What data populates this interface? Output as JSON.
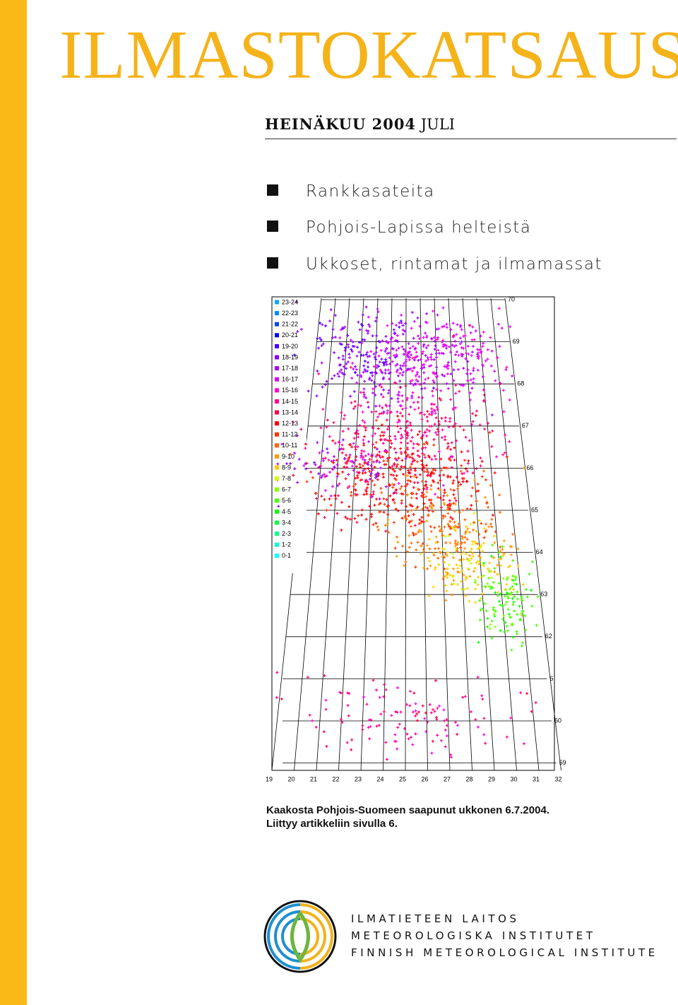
{
  "header": {
    "title": "ILMASTOKATSAUS",
    "subtitle_bold": "HEINÄKUU 2004",
    "subtitle_light": "JULI"
  },
  "bullets": [
    "Rankkasateita",
    "Pohjois-Lapissa helteistä",
    "Ukkoset, rintamat ja ilmamassat"
  ],
  "map": {
    "legend": [
      {
        "label": "23-24",
        "color": "#00aaff"
      },
      {
        "label": "22-23",
        "color": "#0088ff"
      },
      {
        "label": "21-22",
        "color": "#0044ff"
      },
      {
        "label": "20-21",
        "color": "#0000ff"
      },
      {
        "label": "19-20",
        "color": "#4400ff"
      },
      {
        "label": "18-19",
        "color": "#8800ff"
      },
      {
        "label": "17-18",
        "color": "#aa00ff"
      },
      {
        "label": "16-17",
        "color": "#dd00ff"
      },
      {
        "label": "15-16",
        "color": "#ff00dd"
      },
      {
        "label": "14-15",
        "color": "#ff0088"
      },
      {
        "label": "13-14",
        "color": "#ff0044"
      },
      {
        "label": "12-13",
        "color": "#ff0000"
      },
      {
        "label": "11-12",
        "color": "#ff3300"
      },
      {
        "label": "10-11",
        "color": "#ff6600"
      },
      {
        "label": "9-10",
        "color": "#ff9900"
      },
      {
        "label": "8-9",
        "color": "#ffcc00"
      },
      {
        "label": "7-8",
        "color": "#ccff00"
      },
      {
        "label": "6-7",
        "color": "#88ff00"
      },
      {
        "label": "5-6",
        "color": "#44ff00"
      },
      {
        "label": "4-5",
        "color": "#00ff00"
      },
      {
        "label": "3-4",
        "color": "#00ff44"
      },
      {
        "label": "2-3",
        "color": "#00ff88"
      },
      {
        "label": "1-2",
        "color": "#00ffcc"
      },
      {
        "label": "0-1",
        "color": "#00ffff"
      }
    ],
    "latitudes": [
      "70",
      "69",
      "68",
      "67",
      "66",
      "65",
      "64",
      "63",
      "62",
      "6",
      "60",
      "59"
    ],
    "longitudes": [
      "19",
      "20",
      "21",
      "22",
      "23",
      "24",
      "25",
      "26",
      "27",
      "28",
      "29",
      "30",
      "31",
      "32"
    ]
  },
  "caption": [
    "Kaakosta Pohjois-Suomeen saapunut ukkonen 6.7.2004.",
    "Liittyy artikkeliin sivulla 6."
  ],
  "footer": [
    "ILMATIETEEN LAITOS",
    "METEOROLOGISKA INSTITUTET",
    "FINNISH METEOROLOGICAL INSTITUTE"
  ]
}
